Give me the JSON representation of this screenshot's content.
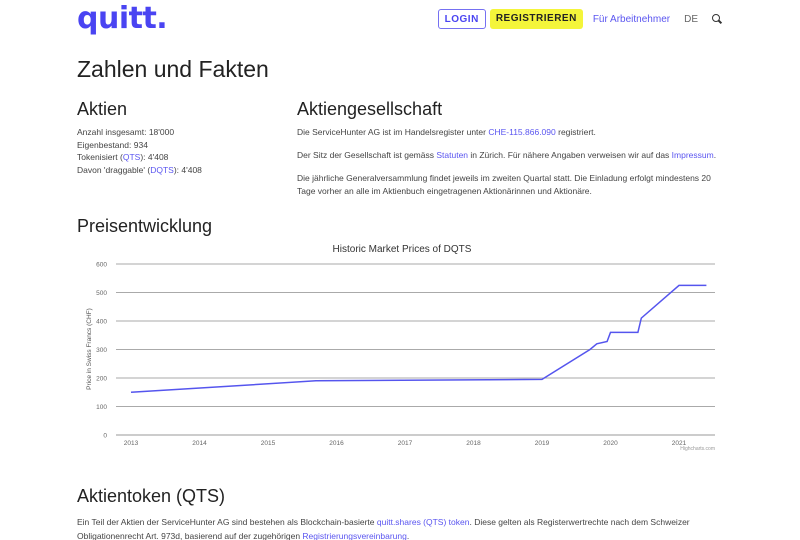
{
  "header": {
    "logo": "quitt.",
    "login_label": "LOGIN",
    "register_label": "REGISTRIEREN",
    "employee_link": "Für Arbeitnehmer",
    "language": "DE",
    "search_icon": "search-icon"
  },
  "page_title": "Zahlen und Fakten",
  "aktien": {
    "title": "Aktien",
    "total_label": "Anzahl insgesamt:",
    "total_value": "18'000",
    "own_label": "Eigenbestand:",
    "own_value": "934",
    "tokenized_label": "Tokenisiert (",
    "tokenized_link": "QTS",
    "tokenized_suffix": "): 4'408",
    "draggable_label": "Davon 'draggable' (",
    "draggable_link": "DQTS",
    "draggable_suffix": "): 4'408"
  },
  "aktiengesellschaft": {
    "title": "Aktiengesellschaft",
    "p1_pre": "Die ServiceHunter AG ist im Handelsregister unter ",
    "p1_link": "CHE-115.866.090",
    "p1_post": " registriert.",
    "p2_pre": "Der Sitz der Gesellschaft ist gemäss ",
    "p2_link1": "Statuten",
    "p2_mid": " in Zürich. Für nähere Angaben verweisen wir auf das ",
    "p2_link2": "Impressum",
    "p2_post": ".",
    "p3": "Die jährliche Generalversammlung findet jeweils im zweiten Quartal statt. Die Einladung erfolgt mindestens 20 Tage vorher an alle im Aktienbuch eingetragenen Aktionärinnen und Aktionäre."
  },
  "preisentwicklung": {
    "title": "Preisentwicklung",
    "credit": "Highcharts.com"
  },
  "chart_data": {
    "type": "line",
    "title": "Historic Market Prices of DQTS",
    "xlabel": "",
    "ylabel": "Price in Swiss Francs (CHF)",
    "ylim": [
      0,
      600
    ],
    "yticks": [
      0,
      100,
      200,
      300,
      400,
      500,
      600
    ],
    "xticks": [
      "2013",
      "2014",
      "2015",
      "2016",
      "2017",
      "2018",
      "2019",
      "2020",
      "2021"
    ],
    "grid": true,
    "legend": "none",
    "series": [
      {
        "name": "DQTS",
        "color": "#5555ee",
        "x": [
          2013.0,
          2015.7,
          2019.0,
          2019.7,
          2019.8,
          2019.95,
          2020.0,
          2020.4,
          2020.45,
          2021.0,
          2021.4
        ],
        "y": [
          150,
          190,
          195,
          300,
          320,
          328,
          360,
          360,
          410,
          525,
          525
        ]
      }
    ]
  },
  "aktientoken": {
    "title": "Aktientoken (QTS)",
    "p_pre": "Ein Teil der Aktien der ServiceHunter AG sind bestehen als Blockchain-basierte ",
    "p_link1": "quitt.shares (QTS) token",
    "p_mid": ". Diese gelten als Registerwertrechte nach dem Schweizer Obligationenrecht Art. 973d, basierend auf der zugehörigen ",
    "p_link2": "Registrierungsvereinbarung",
    "p_post": "."
  }
}
